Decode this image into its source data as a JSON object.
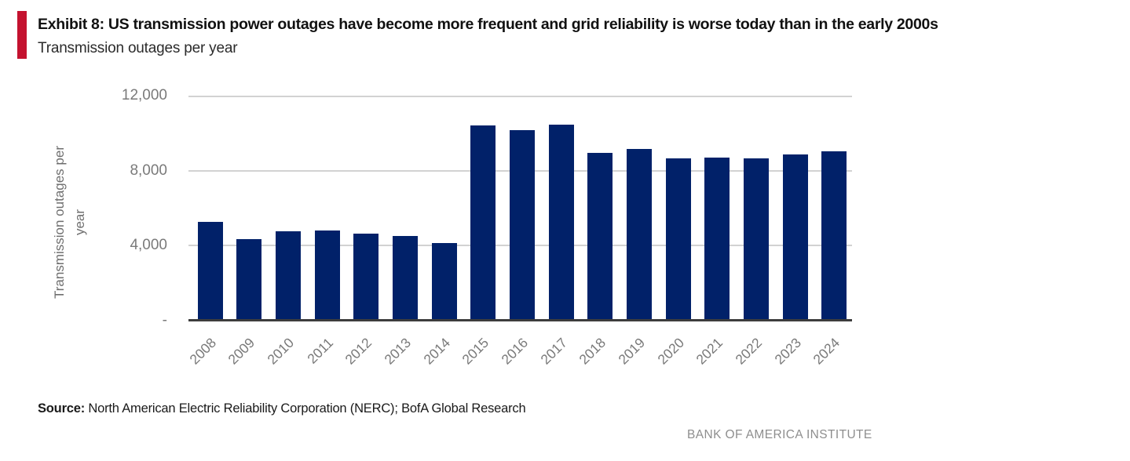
{
  "header": {
    "exhibit_title": "Exhibit 8: US transmission power outages have become more frequent and grid reliability is worse today than in the early 2000s",
    "subtitle": "Transmission outages per year"
  },
  "chart_data": {
    "type": "bar",
    "title": "Transmission outages per year",
    "xlabel": "",
    "ylabel": "Transmission outages per year",
    "categories": [
      "2008",
      "2009",
      "2010",
      "2011",
      "2012",
      "2013",
      "2014",
      "2015",
      "2016",
      "2017",
      "2018",
      "2019",
      "2020",
      "2021",
      "2022",
      "2023",
      "2024"
    ],
    "values": [
      5250,
      4350,
      4750,
      4800,
      4650,
      4500,
      4150,
      10400,
      10150,
      10450,
      8950,
      9150,
      8650,
      8700,
      8650,
      8850,
      9050
    ],
    "ylim": [
      0,
      12000
    ],
    "yticks": [
      {
        "value": 0,
        "label": "-"
      },
      {
        "value": 4000,
        "label": "4,000"
      },
      {
        "value": 8000,
        "label": "8,000"
      },
      {
        "value": 12000,
        "label": "12,000"
      }
    ],
    "grid": true,
    "legend_position": "none",
    "bar_color": "#012169",
    "gridline_color": "#d2d2d2",
    "axis_line_color": "#3d3d3d",
    "tick_label_color": "#7a7a7a"
  },
  "footer": {
    "source_label": "Source:",
    "source_text": " North American Electric Reliability Corporation (NERC); BofA Global Research",
    "brand": "BANK OF AMERICA INSTITUTE"
  },
  "accent_color": "#c4122f"
}
